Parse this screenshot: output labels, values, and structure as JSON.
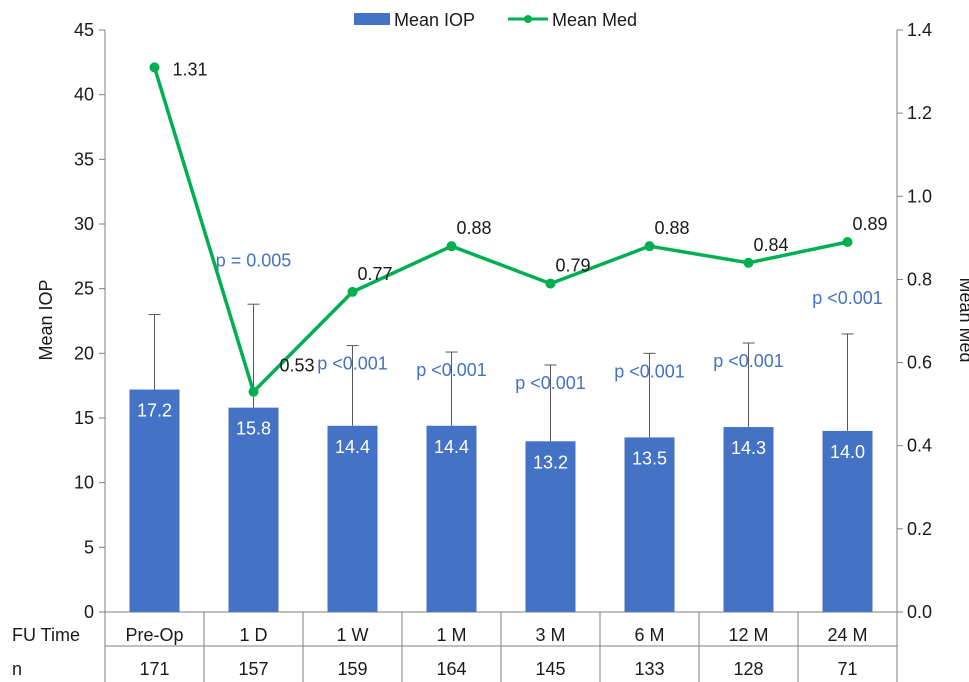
{
  "chart_data": {
    "type": "bar",
    "categories": [
      "Pre-Op",
      "1 D",
      "1 W",
      "1 M",
      "3 M",
      "6 M",
      "12 M",
      "24 M"
    ],
    "series": [
      {
        "name": "Mean IOP",
        "axis": "left",
        "type": "bar",
        "values": [
          17.2,
          15.8,
          14.4,
          14.4,
          13.2,
          13.5,
          14.3,
          14.0
        ],
        "labels": [
          "17.2",
          "15.8",
          "14.4",
          "14.4",
          "13.2",
          "13.5",
          "14.3",
          "14.0"
        ],
        "error_upper": [
          23.0,
          23.8,
          20.6,
          20.1,
          19.1,
          20.0,
          20.8,
          21.5
        ]
      },
      {
        "name": "Mean Med",
        "axis": "right",
        "type": "line",
        "values": [
          1.31,
          0.53,
          0.77,
          0.88,
          0.79,
          0.88,
          0.84,
          0.89
        ],
        "labels": [
          "1.31",
          "0.53",
          "0.77",
          "0.88",
          "0.79",
          "0.88",
          "0.84",
          "0.89"
        ]
      }
    ],
    "p_values": [
      "",
      "p = 0.005",
      "p <0.001",
      "p <0.001",
      "p <0.001",
      "p <0.001",
      "p <0.001",
      "p <0.001"
    ],
    "ylabel": "Mean IOP",
    "y2label": "Mean Med",
    "ylim": [
      0,
      45
    ],
    "y2lim": [
      0,
      1.4
    ],
    "yticks": [
      "0",
      "5",
      "10",
      "15",
      "20",
      "25",
      "30",
      "35",
      "40",
      "45"
    ],
    "y2ticks": [
      "0.0",
      "0.2",
      "0.4",
      "0.6",
      "0.8",
      "1.0",
      "1.2",
      "1.4"
    ],
    "table": {
      "row_labels": [
        "FU Time",
        "n"
      ],
      "n": [
        "171",
        "157",
        "159",
        "164",
        "145",
        "133",
        "128",
        "71"
      ]
    },
    "legend_position": "top",
    "grid": false,
    "colors": {
      "bar": "#4472c4",
      "line": "#00b050",
      "pvalue": "#4472c4",
      "error": "#595959"
    }
  }
}
